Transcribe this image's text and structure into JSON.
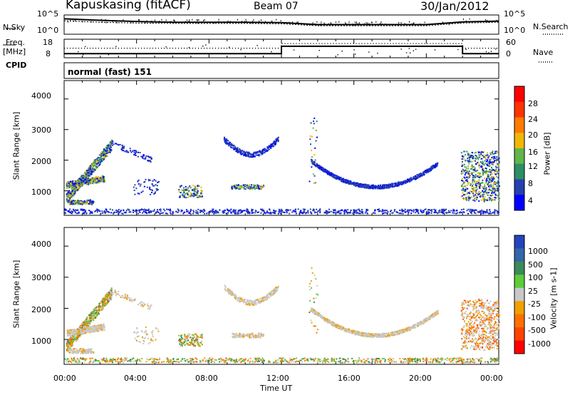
{
  "header": {
    "station": "Kapuskasing (fitACF)",
    "beam": "Beam 07",
    "date": "30/Jan/2012"
  },
  "left_labels": {
    "nsky": "N.Sky",
    "freq": "Freq.",
    "freq_unit": "[MHz]",
    "cpid": "CPID"
  },
  "right_labels": {
    "nsearch": "N.Search",
    "nave": "Nave"
  },
  "cpid_text": "normal (fast) 151",
  "colors": {
    "line": "#000000",
    "gray": "#c4c4c4"
  },
  "chart_data": [
    {
      "type": "line",
      "panel": "noise",
      "ylabel_left": "N.Sky",
      "ylabel_right": "N.Search",
      "yticks_left": [
        "10^5",
        "10^0"
      ],
      "yticks_right": [
        "10^5",
        "10^0"
      ],
      "x": [
        "00:00",
        "02:00",
        "04:00",
        "06:00",
        "08:00",
        "10:00",
        "12:00",
        "14:00",
        "16:00",
        "18:00",
        "20:00",
        "22:00",
        "24:00"
      ],
      "series": [
        {
          "name": "N.Sky",
          "values": [
            4.0,
            3.6,
            3.3,
            3.1,
            3.1,
            3.1,
            3.0,
            2.5,
            2.5,
            2.5,
            2.5,
            3.2,
            3.4
          ]
        },
        {
          "name": "N.Search",
          "values": [
            3.5,
            3.1,
            2.9,
            2.8,
            2.8,
            2.8,
            2.7,
            2.2,
            2.2,
            2.2,
            2.2,
            2.9,
            3.1
          ]
        }
      ]
    },
    {
      "type": "line",
      "panel": "frequency",
      "ylabel_left": "Freq. [MHz]",
      "ylabel_right": "Nave",
      "yticks_left": [
        "18",
        "8"
      ],
      "yticks_right": [
        "60",
        "0"
      ],
      "series": [
        {
          "name": "Freq",
          "points": [
            [
              "00:00",
              10.2
            ],
            [
              "12:00",
              10.2
            ],
            [
              "12:00",
              14.2
            ],
            [
              "22:00",
              14.2
            ],
            [
              "22:00",
              10.2
            ],
            [
              "24:00",
              10.2
            ]
          ]
        },
        {
          "name": "Nave",
          "points": [
            [
              "00:00",
              31
            ],
            [
              "12:00",
              31
            ],
            [
              "12:00",
              46
            ],
            [
              "22:00",
              46
            ],
            [
              "22:00",
              31
            ],
            [
              "24:00",
              31
            ]
          ]
        }
      ]
    },
    {
      "type": "heatmap",
      "panel": "power",
      "ylabel": "Slant Range [km]",
      "yticks": [
        "1000",
        "2000",
        "3000",
        "4000"
      ],
      "ylim": [
        200,
        4600
      ],
      "colorbar_label": "Power [dB]",
      "colorbar_ticks": [
        "4",
        "8",
        "12",
        "16",
        "20",
        "24",
        "28"
      ],
      "colorbar_colors": [
        "#0000ff",
        "#2540b0",
        "#2e8c66",
        "#5fb64b",
        "#f2b705",
        "#ff7a00",
        "#ff3300",
        "#ff0000"
      ],
      "regions": [
        {
          "x": [
            "00:00",
            "02:30"
          ],
          "range_km": [
            550,
            2600
          ],
          "level": "8-16"
        },
        {
          "x": [
            "03:30",
            "05:00"
          ],
          "range_km": [
            650,
            1500
          ],
          "level": "4-8"
        },
        {
          "x": [
            "06:20",
            "07:40"
          ],
          "range_km": [
            700,
            1300
          ],
          "level": "8-20"
        },
        {
          "x": [
            "08:30",
            "12:00"
          ],
          "range_km": [
            1900,
            3000
          ],
          "level": "4-8"
        },
        {
          "x": [
            "09:10",
            "11:10"
          ],
          "range_km": [
            1000,
            1300
          ],
          "level": "8-20"
        },
        {
          "x": [
            "13:20",
            "20:30"
          ],
          "range_km": [
            1100,
            2100
          ],
          "level": "4-8"
        },
        {
          "x": [
            "21:50",
            "24:00"
          ],
          "range_km": [
            500,
            2400
          ],
          "level": "8-24"
        }
      ]
    },
    {
      "type": "heatmap",
      "panel": "velocity",
      "ylabel": "Slant Range [km]",
      "yticks": [
        "1000",
        "2000",
        "3000",
        "4000"
      ],
      "ylim": [
        200,
        4600
      ],
      "colorbar_label": "Velocity [m s-1]",
      "colorbar_ticks": [
        "1000",
        "500",
        "100",
        "25",
        "-25",
        "-100",
        "-500",
        "-1000"
      ],
      "colorbar_colors": [
        "#2244bb",
        "#3366aa",
        "#3b8a5a",
        "#5fcc3a",
        "#c8c8c8",
        "#f0a000",
        "#ff7000",
        "#ff4400",
        "#ff0000"
      ],
      "xlabel": "Time UT",
      "xticks": [
        "00:00",
        "04:00",
        "08:00",
        "12:00",
        "16:00",
        "20:00",
        "00:00"
      ]
    }
  ]
}
